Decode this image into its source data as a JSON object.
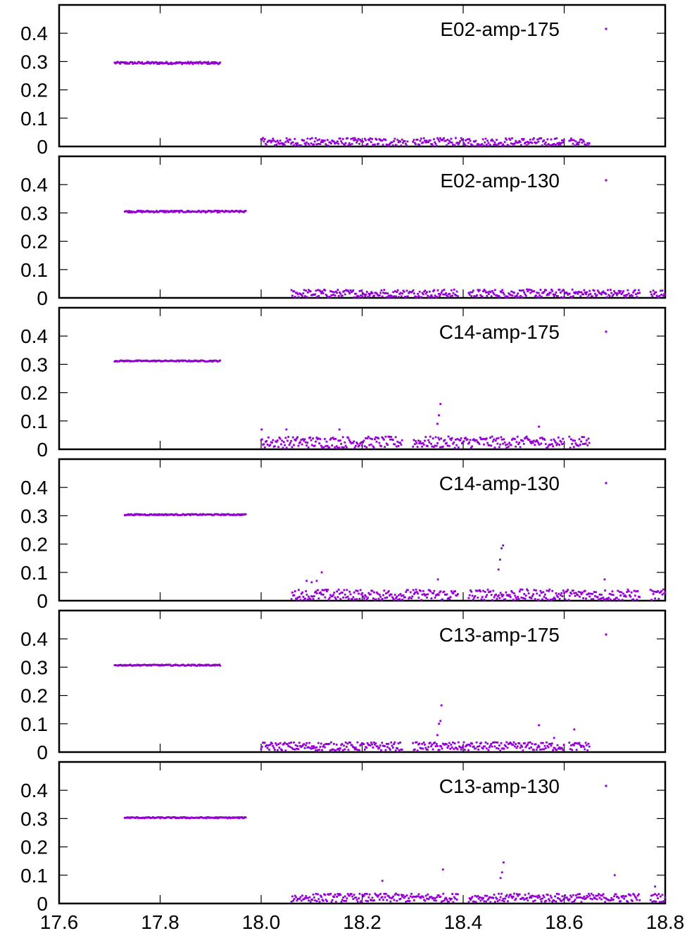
{
  "colors": {
    "series": "#9400d3",
    "axis": "#000000"
  },
  "chart_data": [
    {
      "type": "scatter",
      "legend_position": "top-right",
      "xlim": [
        17.6,
        18.8
      ],
      "ylim": [
        0,
        0.5
      ],
      "yticks": [
        0,
        0.1,
        0.2,
        0.3,
        0.4
      ],
      "series": [
        {
          "name": "E02-amp-175",
          "segments": [
            {
              "x_range": [
                17.71,
                17.92
              ],
              "baseline": 0.295,
              "jitter": 0.004,
              "spikes": []
            },
            {
              "x_range": [
                18.0,
                18.65
              ],
              "baseline": 0.015,
              "jitter": 0.015,
              "gaps": [
                [
                  18.29,
                  18.3
                ],
                [
                  18.6,
                  18.61
                ]
              ],
              "spikes": []
            }
          ]
        }
      ]
    },
    {
      "type": "scatter",
      "legend_position": "top-right",
      "xlim": [
        17.6,
        18.8
      ],
      "ylim": [
        0,
        0.5
      ],
      "yticks": [
        0,
        0.1,
        0.2,
        0.3,
        0.4
      ],
      "series": [
        {
          "name": "E02-amp-130",
          "segments": [
            {
              "x_range": [
                17.73,
                17.97
              ],
              "baseline": 0.305,
              "jitter": 0.003,
              "spikes": []
            },
            {
              "x_range": [
                18.06,
                18.8
              ],
              "baseline": 0.015,
              "jitter": 0.015,
              "gaps": [
                [
                  18.39,
                  18.41
                ],
                [
                  18.75,
                  18.77
                ]
              ],
              "spikes": []
            }
          ]
        }
      ]
    },
    {
      "type": "scatter",
      "legend_position": "top-right",
      "xlim": [
        17.6,
        18.8
      ],
      "ylim": [
        0,
        0.5
      ],
      "yticks": [
        0,
        0.1,
        0.2,
        0.3,
        0.4
      ],
      "series": [
        {
          "name": "C14-amp-175",
          "segments": [
            {
              "x_range": [
                17.71,
                17.92
              ],
              "baseline": 0.312,
              "jitter": 0.002,
              "spikes": []
            },
            {
              "x_range": [
                18.0,
                18.65
              ],
              "baseline": 0.025,
              "jitter": 0.02,
              "gaps": [
                [
                  18.28,
                  18.3
                ],
                [
                  18.6,
                  18.61
                ]
              ],
              "spikes": [
                [
                  18.355,
                  0.16
                ],
                [
                  18.352,
                  0.12
                ],
                [
                  18.349,
                  0.09
                ],
                [
                  18.001,
                  0.07
                ],
                [
                  18.05,
                  0.07
                ],
                [
                  18.155,
                  0.07
                ],
                [
                  18.55,
                  0.08
                ]
              ]
            }
          ]
        }
      ]
    },
    {
      "type": "scatter",
      "legend_position": "top-right",
      "xlim": [
        17.6,
        18.8
      ],
      "ylim": [
        0,
        0.5
      ],
      "yticks": [
        0,
        0.1,
        0.2,
        0.3,
        0.4
      ],
      "series": [
        {
          "name": "C14-amp-130",
          "segments": [
            {
              "x_range": [
                17.73,
                17.97
              ],
              "baseline": 0.304,
              "jitter": 0.002,
              "spikes": []
            },
            {
              "x_range": [
                18.06,
                18.8
              ],
              "baseline": 0.02,
              "jitter": 0.02,
              "gaps": [
                [
                  18.39,
                  18.41
                ],
                [
                  18.75,
                  18.77
                ]
              ],
              "spikes": [
                [
                  18.479,
                  0.195
                ],
                [
                  18.476,
                  0.185
                ],
                [
                  18.473,
                  0.145
                ],
                [
                  18.47,
                  0.11
                ],
                [
                  18.12,
                  0.1
                ],
                [
                  18.09,
                  0.07
                ],
                [
                  18.1,
                  0.065
                ],
                [
                  18.11,
                  0.07
                ],
                [
                  18.35,
                  0.075
                ],
                [
                  18.68,
                  0.075
                ]
              ]
            }
          ]
        }
      ]
    },
    {
      "type": "scatter",
      "legend_position": "top-right",
      "xlim": [
        17.6,
        18.8
      ],
      "ylim": [
        0,
        0.5
      ],
      "yticks": [
        0,
        0.1,
        0.2,
        0.3,
        0.4
      ],
      "series": [
        {
          "name": "C13-amp-175",
          "segments": [
            {
              "x_range": [
                17.71,
                17.92
              ],
              "baseline": 0.307,
              "jitter": 0.002,
              "spikes": []
            },
            {
              "x_range": [
                18.0,
                18.65
              ],
              "baseline": 0.02,
              "jitter": 0.015,
              "gaps": [
                [
                  18.28,
                  18.3
                ],
                [
                  18.6,
                  18.61
                ]
              ],
              "spikes": [
                [
                  18.357,
                  0.165
                ],
                [
                  18.355,
                  0.11
                ],
                [
                  18.352,
                  0.1
                ],
                [
                  18.349,
                  0.06
                ],
                [
                  18.55,
                  0.095
                ],
                [
                  18.62,
                  0.08
                ],
                [
                  18.58,
                  0.05
                ]
              ]
            }
          ]
        }
      ]
    },
    {
      "type": "scatter",
      "legend_position": "top-right",
      "xlim": [
        17.6,
        18.8
      ],
      "ylim": [
        0,
        0.5
      ],
      "yticks": [
        0,
        0.1,
        0.2,
        0.3,
        0.4
      ],
      "xticks": [
        "17.6",
        "17.8",
        "18.0",
        "18.2",
        "18.4",
        "18.6",
        "18.8"
      ],
      "series": [
        {
          "name": "C13-amp-130",
          "segments": [
            {
              "x_range": [
                17.73,
                17.97
              ],
              "baseline": 0.303,
              "jitter": 0.002,
              "spikes": []
            },
            {
              "x_range": [
                18.06,
                18.8
              ],
              "baseline": 0.02,
              "jitter": 0.015,
              "gaps": [
                [
                  18.39,
                  18.41
                ],
                [
                  18.75,
                  18.77
                ]
              ],
              "spikes": [
                [
                  18.48,
                  0.145
                ],
                [
                  18.477,
                  0.11
                ],
                [
                  18.474,
                  0.09
                ],
                [
                  18.36,
                  0.12
                ],
                [
                  18.24,
                  0.08
                ],
                [
                  18.7,
                  0.1
                ],
                [
                  18.78,
                  0.06
                ]
              ]
            }
          ]
        }
      ]
    }
  ]
}
